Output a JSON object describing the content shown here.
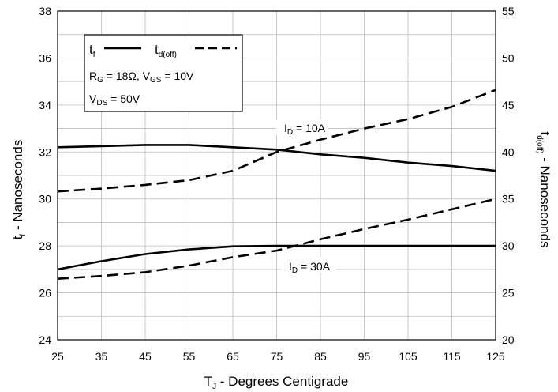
{
  "chart_data": {
    "type": "line",
    "x": [
      25,
      35,
      45,
      55,
      65,
      75,
      85,
      95,
      105,
      115,
      125
    ],
    "xlim": [
      25,
      125
    ],
    "ylim_left": [
      24,
      38
    ],
    "ylim_right": [
      20,
      55
    ],
    "grid": true,
    "x_ticks": [
      "25",
      "35",
      "45",
      "55",
      "65",
      "75",
      "85",
      "95",
      "105",
      "115",
      "125"
    ],
    "y_left_ticks": [
      "24",
      "26",
      "28",
      "30",
      "32",
      "34",
      "36",
      "38"
    ],
    "y_right_ticks": [
      "20",
      "25",
      "30",
      "35",
      "40",
      "45",
      "50",
      "55"
    ],
    "xlabel": {
      "main": "T",
      "sub": "J",
      "rest": " - Degrees Centigrade"
    },
    "ylabel_left": {
      "main": "t",
      "sub": "f",
      "rest": " - Nanoseconds"
    },
    "ylabel_right": {
      "main": "t",
      "sub": "d(off)",
      "rest": " - Nanoseconds"
    },
    "series": [
      {
        "axis": "left",
        "style": "solid",
        "group": "10A",
        "values": [
          32.2,
          32.25,
          32.3,
          32.3,
          32.2,
          32.1,
          31.9,
          31.75,
          31.55,
          31.4,
          31.2
        ]
      },
      {
        "axis": "right",
        "style": "dashed",
        "group": "10A",
        "values": [
          35.8,
          36.1,
          36.5,
          37.0,
          38.0,
          40.0,
          41.3,
          42.5,
          43.5,
          44.8,
          46.6
        ]
      },
      {
        "axis": "left",
        "style": "solid",
        "group": "30A",
        "values": [
          27.0,
          27.35,
          27.65,
          27.85,
          27.98,
          28.0,
          28.0,
          28.0,
          28.0,
          28.0,
          28.0
        ]
      },
      {
        "axis": "right",
        "style": "dashed",
        "group": "30A",
        "values": [
          26.5,
          26.8,
          27.2,
          27.9,
          28.8,
          29.5,
          30.7,
          31.8,
          32.8,
          33.9,
          35.0
        ]
      }
    ],
    "annotations": [
      {
        "main": "I",
        "sub": "D",
        "rest": " = 10A"
      },
      {
        "main": "I",
        "sub": "D",
        "rest": " = 30A"
      }
    ],
    "legend": {
      "entries": [
        {
          "main": "t",
          "sub": "f",
          "style": "solid"
        },
        {
          "main": "t",
          "sub": "d(off)",
          "style": "dashed"
        }
      ],
      "cond1": {
        "rg": "R",
        "rg_sub": "G",
        "rg_val": " = 18Ω,  V",
        "vgs_sub": "GS",
        "vgs_val": " = 10V"
      },
      "cond2": {
        "main": "V",
        "sub": "DS",
        "rest": " = 50V"
      }
    }
  }
}
